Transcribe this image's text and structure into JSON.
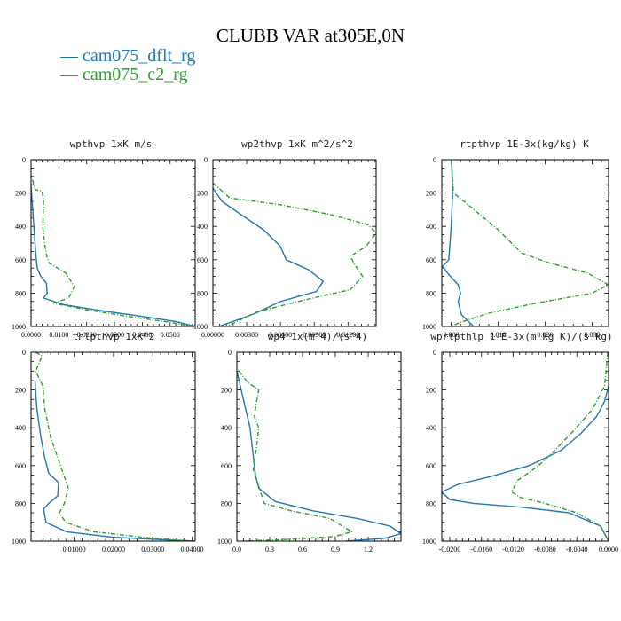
{
  "title": "CLUBB VAR at305E,0N",
  "legend": [
    {
      "label": "— cam075_dflt_rg",
      "color": "#1f77b4"
    },
    {
      "label": "— cam075_c2_rg",
      "color": "#2ca02c"
    }
  ],
  "chart_data": [
    {
      "type": "line",
      "title": "wpthvp  1xK m/s",
      "xlim": [
        0,
        0.059
      ],
      "ylim": [
        1000,
        0
      ],
      "xticks": [
        0.0,
        0.01,
        0.02,
        0.03,
        0.04,
        0.05
      ],
      "xtick_labels": [
        "0.0000",
        "0.0100",
        "0.0200",
        "0.0300",
        "0.0400",
        "0.0500"
      ],
      "yticks": [
        0,
        200,
        400,
        600,
        800,
        1000
      ],
      "ytick_labels": [
        "0",
        "200",
        "400",
        "600",
        "800",
        "1000"
      ],
      "series": [
        {
          "name": "cam075_dflt_rg",
          "x": [
            0,
            0.0006,
            0.0012,
            0.0018,
            0.0022,
            0.0035,
            0.0055,
            0.0058,
            0.0045,
            0.012,
            0.025,
            0.04,
            0.052,
            0.059
          ],
          "y": [
            160,
            300,
            450,
            580,
            650,
            700,
            740,
            800,
            830,
            870,
            905,
            940,
            970,
            1000
          ]
        },
        {
          "name": "cam075_c2_rg",
          "x": [
            0.0005,
            0.0015,
            0.004,
            0.0045,
            0.0042,
            0.005,
            0.0058,
            0.0065,
            0.0125,
            0.0155,
            0.0145,
            0.0135,
            0.008,
            0.02,
            0.035,
            0.05,
            0.058
          ],
          "y": [
            120,
            180,
            190,
            250,
            400,
            520,
            590,
            620,
            680,
            760,
            800,
            830,
            860,
            900,
            940,
            975,
            1000
          ]
        }
      ]
    },
    {
      "type": "line",
      "title": "wp2thvp  1xK m^2/s^2",
      "xlim": [
        0,
        0.0145
      ],
      "ylim": [
        1000,
        0
      ],
      "xticks": [
        0.0,
        0.003,
        0.006,
        0.009,
        0.012
      ],
      "xtick_labels": [
        "0.00000",
        "0.00300",
        "0.00600",
        "0.00900",
        "0.01200"
      ],
      "yticks": [
        0,
        200,
        400,
        600,
        800,
        1000
      ],
      "ytick_labels": [
        "0",
        "200",
        "400",
        "600",
        "800",
        "1000"
      ],
      "series": [
        {
          "name": "cam075_dflt_rg",
          "x": [
            0,
            0.0008,
            0.0025,
            0.0045,
            0.006,
            0.0065,
            0.0085,
            0.0098,
            0.0092,
            0.006,
            0.0038,
            0.0022,
            0.0005
          ],
          "y": [
            170,
            250,
            330,
            420,
            520,
            600,
            660,
            730,
            790,
            850,
            920,
            960,
            1000
          ]
        },
        {
          "name": "cam075_c2_rg",
          "x": [
            0,
            0.0015,
            0.006,
            0.0105,
            0.0138,
            0.0145,
            0.0136,
            0.0122,
            0.0126,
            0.0133,
            0.0122,
            0.0082,
            0.004,
            0.0012
          ],
          "y": [
            140,
            230,
            270,
            330,
            390,
            440,
            520,
            580,
            630,
            700,
            780,
            840,
            910,
            1000
          ]
        }
      ]
    },
    {
      "type": "line",
      "title": "rtpthvp  1E-3x(kg/kg) K",
      "xlim": [
        -0.002,
        0.0335
      ],
      "ylim": [
        1000,
        0
      ],
      "xticks": [
        0.0,
        0.01,
        0.02,
        0.03
      ],
      "xtick_labels": [
        "0.000",
        "0.010",
        "0.020",
        "0.030"
      ],
      "yticks": [
        0,
        200,
        400,
        600,
        800,
        1000
      ],
      "ytick_labels": [
        "0",
        "200",
        "400",
        "600",
        "800",
        "1000"
      ],
      "series": [
        {
          "name": "cam075_dflt_rg",
          "x": [
            0.0001,
            0.0003,
            0.0,
            -0.0005,
            -0.0018,
            -0.0008,
            0.0015,
            0.002,
            0.0015,
            0.0022,
            0.0048
          ],
          "y": [
            0,
            200,
            400,
            600,
            640,
            680,
            750,
            800,
            850,
            930,
            1000
          ]
        },
        {
          "name": "cam075_c2_rg",
          "x": [
            0.0,
            0.0005,
            0.004,
            0.01,
            0.015,
            0.021,
            0.029,
            0.0335,
            0.03,
            0.018,
            0.008,
            0.0015,
            0.0
          ],
          "y": [
            0,
            200,
            280,
            420,
            560,
            620,
            680,
            750,
            800,
            860,
            920,
            980,
            1000
          ]
        }
      ]
    },
    {
      "type": "line",
      "title": "thlpthvp  1xK^2",
      "xlim": [
        -0.001,
        0.0408
      ],
      "ylim": [
        1000,
        0
      ],
      "xticks": [
        0.01,
        0.02,
        0.03,
        0.04
      ],
      "xtick_labels": [
        "0.01000",
        "0.02000",
        "0.03000",
        "0.04000"
      ],
      "yticks": [
        0,
        200,
        400,
        600,
        800,
        1000
      ],
      "ytick_labels": [
        "0",
        "200",
        "400",
        "600",
        "800",
        "1000"
      ],
      "series": [
        {
          "name": "cam075_dflt_rg",
          "x": [
            0.0,
            0.0005,
            0.0015,
            0.0025,
            0.0035,
            0.006,
            0.0058,
            0.0035,
            0.0022,
            0.0028,
            0.008,
            0.02,
            0.035,
            0.0405
          ],
          "y": [
            150,
            300,
            450,
            560,
            640,
            690,
            760,
            800,
            830,
            900,
            950,
            980,
            995,
            1000
          ]
        },
        {
          "name": "cam075_c2_rg",
          "x": [
            0.0002,
            0.0018,
            0.0002,
            0.002,
            0.0025,
            0.004,
            0.0065,
            0.0085,
            0.0075,
            0.0062,
            0.0078,
            0.015,
            0.03,
            0.0405
          ],
          "y": [
            0,
            20,
            100,
            180,
            300,
            450,
            600,
            720,
            800,
            850,
            900,
            950,
            985,
            1000
          ]
        }
      ]
    },
    {
      "type": "line",
      "title": "wp4  1x(m^4)/(s^4)",
      "xlim": [
        0,
        1.5
      ],
      "ylim": [
        1000,
        0
      ],
      "xticks": [
        0.0,
        0.3,
        0.6,
        0.9,
        1.2
      ],
      "xtick_labels": [
        "0.0",
        "0.3",
        "0.6",
        "0.9",
        "1.2"
      ],
      "yticks": [
        0,
        200,
        400,
        600,
        800,
        1000
      ],
      "ytick_labels": [
        "0",
        "200",
        "400",
        "600",
        "800",
        "1000"
      ],
      "series": [
        {
          "name": "cam075_dflt_rg",
          "x": [
            0.0,
            0.06,
            0.12,
            0.15,
            0.17,
            0.2,
            0.35,
            0.7,
            1.1,
            1.4,
            1.5,
            1.35,
            1.0
          ],
          "y": [
            100,
            250,
            400,
            550,
            650,
            720,
            790,
            840,
            880,
            920,
            960,
            985,
            1000
          ]
        },
        {
          "name": "cam075_c2_rg",
          "x": [
            0.02,
            0.1,
            0.2,
            0.18,
            0.16,
            0.2,
            0.18,
            0.15,
            0.25,
            0.5,
            0.85,
            1.05,
            0.9,
            0.5,
            0.05
          ],
          "y": [
            100,
            160,
            200,
            260,
            340,
            400,
            500,
            620,
            800,
            840,
            880,
            950,
            975,
            990,
            1000
          ]
        }
      ]
    },
    {
      "type": "line",
      "title": "wprtpthlp  1-E-3x(m kg K)/(s kg)",
      "xlim": [
        -0.021,
        0.0
      ],
      "ylim": [
        1000,
        0
      ],
      "xticks": [
        -0.02,
        -0.016,
        -0.012,
        -0.008,
        -0.004,
        0.0
      ],
      "xtick_labels": [
        "-0.0200",
        "-0.0160",
        "-0.0120",
        "-0.0080",
        "-0.0040",
        "0.0000"
      ],
      "yticks": [
        0,
        200,
        400,
        600,
        800,
        1000
      ],
      "ytick_labels": [
        "0",
        "200",
        "400",
        "600",
        "800",
        "1000"
      ],
      "series": [
        {
          "name": "cam075_dflt_rg",
          "x": [
            0.0,
            -0.0005,
            -0.0015,
            -0.0035,
            -0.006,
            -0.01,
            -0.015,
            -0.019,
            -0.021,
            -0.02,
            -0.017,
            -0.011,
            -0.005,
            -0.001,
            0.0
          ],
          "y": [
            180,
            260,
            340,
            430,
            520,
            600,
            660,
            700,
            740,
            780,
            800,
            820,
            850,
            920,
            1000
          ]
        },
        {
          "name": "cam075_c2_rg",
          "x": [
            -0.0001,
            -0.0005,
            -0.002,
            -0.0045,
            -0.0068,
            -0.0088,
            -0.0115,
            -0.0122,
            -0.011,
            -0.008,
            -0.004,
            -0.001,
            0.0
          ],
          "y": [
            0,
            180,
            300,
            420,
            520,
            600,
            680,
            740,
            770,
            800,
            850,
            920,
            1000
          ]
        }
      ]
    }
  ]
}
